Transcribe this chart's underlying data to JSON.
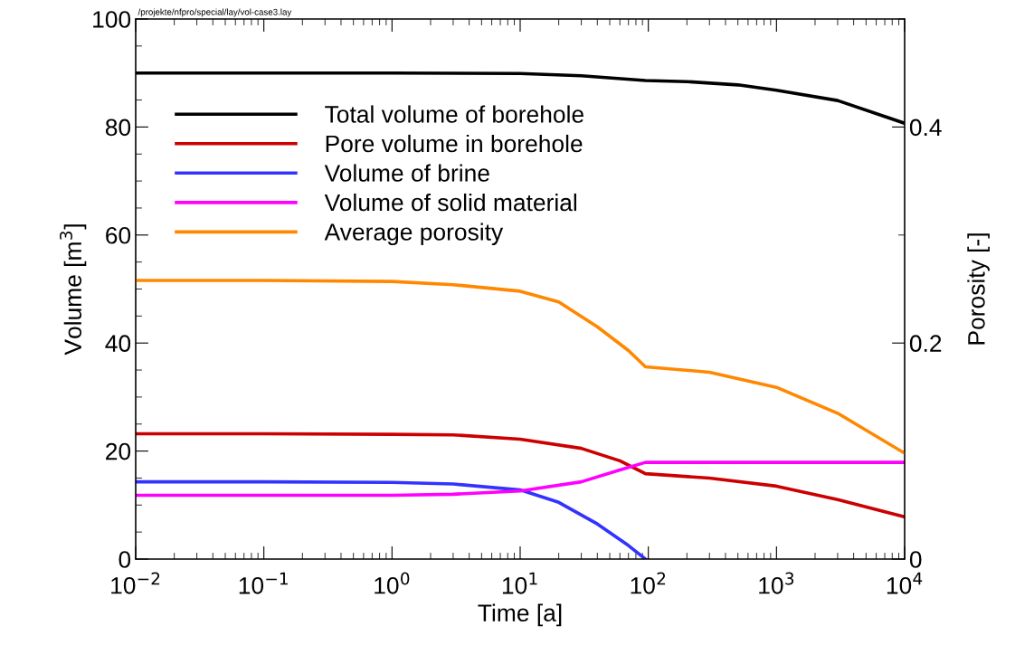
{
  "chart_data": {
    "type": "line",
    "xlabel": "Time [a]",
    "ylabel": "Volume [m$^{3}$]",
    "y2label": "Porosity [-]",
    "log": "x",
    "xlim": [
      0.01,
      10000
    ],
    "xticks": [
      {
        "value": 0.01,
        "label": "10$^{−2}$"
      },
      {
        "value": 0.1,
        "label": "10$^{−1}$"
      },
      {
        "value": 1,
        "label": "10$^{0}$"
      },
      {
        "value": 10,
        "label": "10$^{1}$"
      },
      {
        "value": 100,
        "label": "10$^{2}$"
      },
      {
        "value": 1000,
        "label": "10$^{3}$"
      },
      {
        "value": 10000,
        "label": "10$^{4}$"
      }
    ],
    "ylim": [
      0,
      100
    ],
    "yticks": [
      0,
      20,
      40,
      60,
      80,
      100
    ],
    "y2lim": [
      0,
      0.5
    ],
    "y2ticks": [
      0,
      0.2,
      0.4
    ],
    "grid": false,
    "legend": "top left",
    "line_style": "solid",
    "marker": "none",
    "annotations": [
      "/projekte/nfpro/special/lay/vol-case3.lay"
    ],
    "series": [
      {
        "name": "Total volume of borehole",
        "color": "#000000",
        "x": [
          0.01,
          0.1,
          1,
          10,
          30,
          95,
          200,
          500,
          1000,
          3000,
          10000
        ],
        "values": [
          90,
          90,
          90,
          89.9,
          89.5,
          88.6,
          88.4,
          87.8,
          86.8,
          84.9,
          80.7
        ]
      },
      {
        "name": "Pore volume in borehole",
        "color": "#cc0000",
        "x": [
          0.01,
          0.1,
          1,
          3,
          10,
          30,
          60,
          95,
          300,
          1000,
          3000,
          10000
        ],
        "values": [
          23.2,
          23.2,
          23.1,
          23,
          22.2,
          20.5,
          18.2,
          15.8,
          15,
          13.5,
          11,
          7.8
        ]
      },
      {
        "name": "Volume of brine",
        "color": "#3333ff",
        "x": [
          0.01,
          0.1,
          1,
          3,
          10,
          20,
          40,
          70,
          95
        ],
        "values": [
          14.3,
          14.3,
          14.2,
          13.9,
          12.8,
          10.5,
          6.5,
          2.5,
          0
        ]
      },
      {
        "name": "Volume of solid material",
        "color": "#ff00ff",
        "x": [
          0.01,
          0.1,
          1,
          3,
          10,
          30,
          60,
          95,
          1000,
          10000
        ],
        "values": [
          11.8,
          11.8,
          11.8,
          12,
          12.6,
          14.3,
          16.5,
          17.9,
          17.9,
          17.9
        ]
      },
      {
        "name": "Average porosity",
        "color": "#ff8800",
        "axis": "y2",
        "x": [
          0.01,
          0.1,
          1,
          3,
          10,
          20,
          40,
          70,
          95,
          300,
          1000,
          3000,
          10000
        ],
        "values": [
          0.258,
          0.258,
          0.257,
          0.254,
          0.248,
          0.238,
          0.215,
          0.193,
          0.178,
          0.173,
          0.159,
          0.135,
          0.098
        ]
      }
    ]
  }
}
